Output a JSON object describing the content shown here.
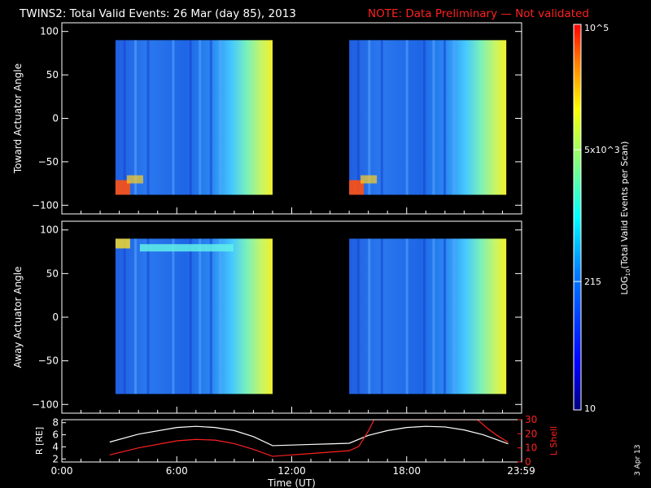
{
  "title": {
    "main": "TWINS2: Total Valid Events: 26 Mar (day  85), 2013",
    "note": "NOTE: Data Preliminary — Not validated"
  },
  "footer_date": "3 Apr 13",
  "colors": {
    "background": "#000000",
    "axes": "#ffffff",
    "note_text": "#ff2020",
    "r_line": "#ffffff",
    "lshell_line": "#ff2020"
  },
  "chart_data": [
    {
      "type": "heatmap",
      "ylabel": "Toward Actuator Angle",
      "ylim": [
        -110,
        110
      ],
      "yticks": [
        "100",
        "50",
        "0",
        "−50",
        "−100"
      ],
      "x_hours_blocks": [
        [
          2.8,
          11.0
        ],
        [
          15.0,
          23.2
        ]
      ],
      "y_extent": [
        -88,
        90
      ],
      "colorscale": "jet-log"
    },
    {
      "type": "heatmap",
      "ylabel": "Away Actuator Angle",
      "ylim": [
        -110,
        110
      ],
      "yticks": [
        "100",
        "50",
        "0",
        "−50",
        "−100"
      ],
      "x_hours_blocks": [
        [
          2.8,
          11.0
        ],
        [
          15.0,
          23.2
        ]
      ],
      "y_extent": [
        -88,
        90
      ],
      "colorscale": "jet-log"
    },
    {
      "type": "line",
      "xlabel": "Time (UT)",
      "xlim": [
        0,
        24
      ],
      "xticks": [
        {
          "label": "0:00",
          "hour": 0
        },
        {
          "label": "6:00",
          "hour": 6
        },
        {
          "label": "12:00",
          "hour": 12
        },
        {
          "label": "18:00",
          "hour": 18
        },
        {
          "label": "23:59",
          "hour": 23.98
        }
      ],
      "left_ylabel": "R [RE]",
      "left_ylim": [
        1.5,
        8.5
      ],
      "left_yticks": [
        "8",
        "6",
        "4",
        "2"
      ],
      "right_ylabel": "L Shell",
      "right_ylim": [
        0,
        30
      ],
      "right_yticks": [
        "30",
        "20",
        "10",
        "0"
      ],
      "series": [
        {
          "axis": "left",
          "x": [
            2.5,
            4,
            6,
            7,
            8,
            9,
            10,
            11,
            12,
            13,
            14,
            15,
            16,
            17,
            18,
            19,
            20,
            21,
            22,
            23.3
          ],
          "y": [
            4.8,
            6.1,
            7.2,
            7.4,
            7.2,
            6.7,
            5.7,
            4.2,
            4.3,
            4.4,
            4.5,
            4.6,
            5.9,
            6.7,
            7.2,
            7.4,
            7.3,
            6.8,
            6.0,
            4.5
          ]
        },
        {
          "axis": "right",
          "x": [
            2.5,
            4,
            6,
            7,
            8,
            9,
            10,
            11,
            12,
            13,
            14,
            15,
            15.5,
            16,
            16.3,
            21.7,
            22.2,
            22.7,
            23.3
          ],
          "y": [
            5,
            10,
            15,
            16,
            15.5,
            13,
            9,
            4,
            5,
            6,
            7,
            8,
            11,
            22,
            30,
            30,
            24,
            19,
            14
          ]
        }
      ]
    }
  ],
  "colorbar": {
    "label": "LOG10(Total Valid Events per Scan)",
    "label_main": "LOG",
    "label_sub": "10",
    "label_rest": "(Total Valid Events per Scan)",
    "ticks": [
      {
        "label": "10",
        "value": 10
      },
      {
        "label": "215",
        "value": 215
      },
      {
        "label": "5x10^3",
        "value": 5000
      },
      {
        "label": "10^5",
        "value": 100000
      }
    ],
    "range": [
      10,
      100000
    ]
  }
}
